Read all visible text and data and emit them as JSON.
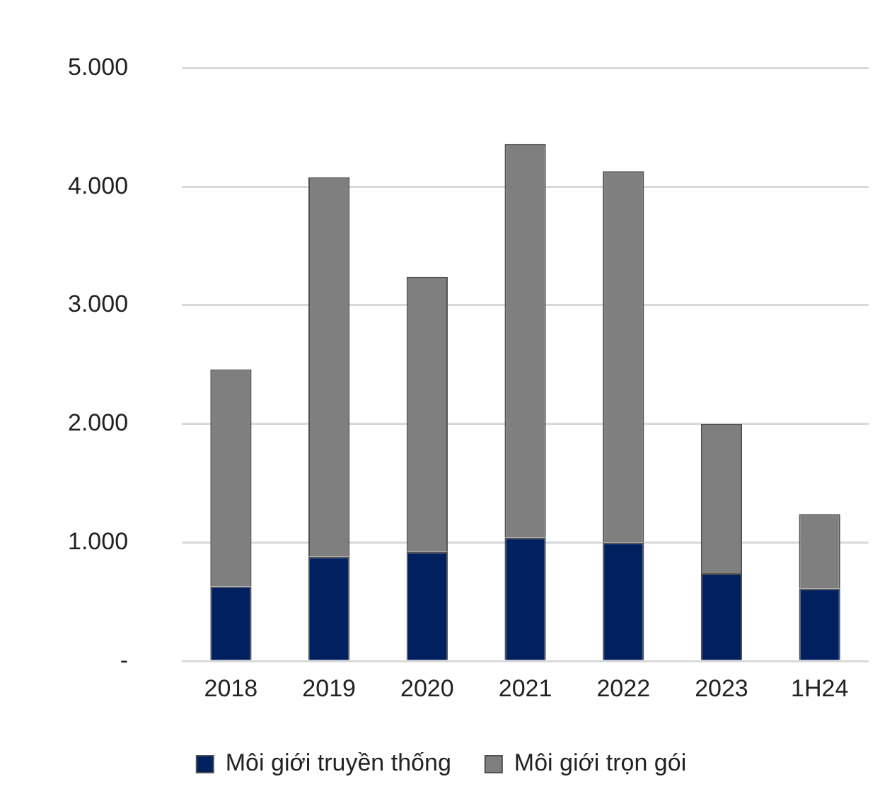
{
  "chart_data": {
    "type": "bar",
    "stacked": true,
    "categories": [
      "2018",
      "2019",
      "2020",
      "2021",
      "2022",
      "2023",
      "1H24"
    ],
    "series": [
      {
        "name": "Môi giới truyền thống",
        "color": "#002060",
        "values": [
          630,
          880,
          920,
          1040,
          1000,
          740,
          610
        ]
      },
      {
        "name": "Môi giới trọn gói",
        "color": "#7f7f7f",
        "values": [
          1830,
          3200,
          2320,
          3320,
          3130,
          1260,
          630
        ]
      }
    ],
    "ylim": [
      0,
      5000
    ],
    "yticks": [
      {
        "value": 0,
        "label": "-"
      },
      {
        "value": 1000,
        "label": "1.000"
      },
      {
        "value": 2000,
        "label": "2.000"
      },
      {
        "value": 3000,
        "label": "3.000"
      },
      {
        "value": 4000,
        "label": "4.000"
      },
      {
        "value": 5000,
        "label": "5.000"
      }
    ],
    "grid": "y",
    "legend": "bottom"
  }
}
